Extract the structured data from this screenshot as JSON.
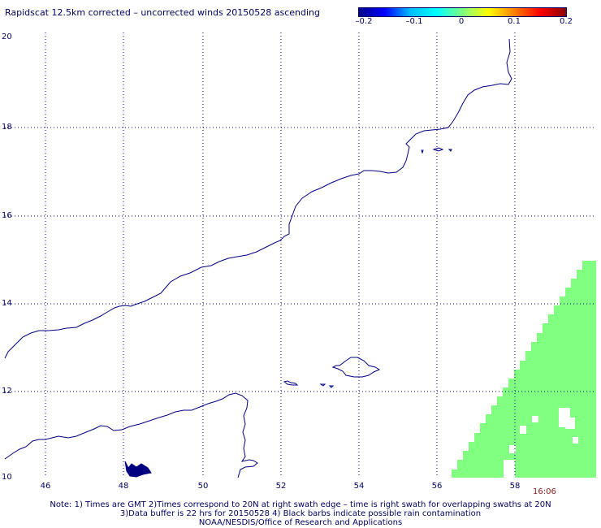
{
  "title": "Rapidscat 12.5km corrected – uncorrected winds 20150528 ascending",
  "colorbar": {
    "ticks": [
      "–0.2",
      "–0.1",
      "0",
      "0.1",
      "0.2"
    ],
    "range": [
      -0.2,
      0.2
    ],
    "colors": [
      "#00008b",
      "#0000ff",
      "#00bfff",
      "#00ffff",
      "#7fff7f",
      "#ffff00",
      "#ff7f00",
      "#ff0000",
      "#8b0000"
    ]
  },
  "axes": {
    "y_labels": [
      "20",
      "18",
      "16",
      "14",
      "12",
      "10"
    ],
    "x_labels": [
      "46",
      "48",
      "50",
      "52",
      "54",
      "56",
      "58"
    ],
    "grid": true
  },
  "swath": {
    "color": "#80ff80"
  },
  "coastline_color": "#000080",
  "timestamp": "16:06",
  "notes": [
    "Note: 1) Times are GMT 2)Times correspond to 20N at right swath edge – time is right swath for overlapping swaths at 20N",
    "3)Data buffer is 22 hrs for 20150528 4) Black barbs indicate possible rain contamination",
    "NOAA/NESDIS/Office of Research and Applications"
  ]
}
